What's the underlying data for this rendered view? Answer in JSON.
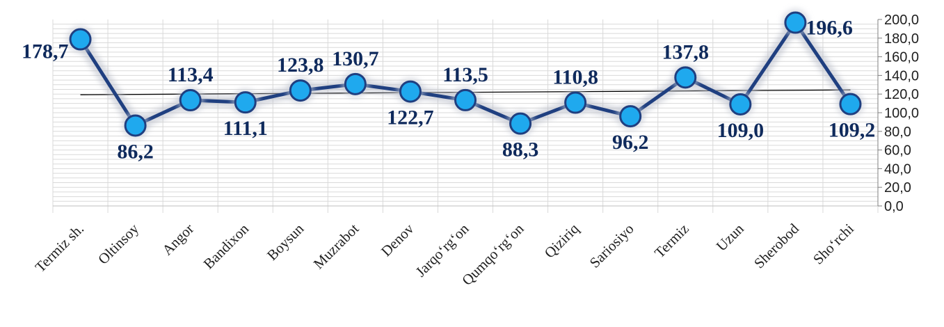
{
  "chart_data": {
    "type": "line",
    "title": "",
    "xlabel": "",
    "ylabel": "",
    "categories": [
      "Termiz sh.",
      "Oltinsoy",
      "Angor",
      "Bandixon",
      "Boysun",
      "Muzrabot",
      "Denov",
      "Jarqo‘rg‘on",
      "Qumqo‘rg‘on",
      "Qiziriq",
      "Sariosiyo",
      "Termiz",
      "Uzun",
      "Sherobod",
      "Sho‘rchi"
    ],
    "series": [
      {
        "values": [
          178.7,
          86.2,
          113.4,
          111.1,
          123.8,
          130.7,
          122.7,
          113.5,
          88.3,
          110.8,
          96.2,
          137.8,
          109.0,
          196.6,
          109.2
        ],
        "labels": [
          "178,7",
          "86,2",
          "113,4",
          "111,1",
          "123,8",
          "130,7",
          "122,7",
          "113,5",
          "88,3",
          "110,8",
          "96,2",
          "137,8",
          "109,0",
          "196,6",
          "109,2"
        ],
        "color": "#1f3f80",
        "marker_color": "#1fa9ee"
      }
    ],
    "trendline": {
      "type": "linear",
      "color": "#000000"
    },
    "ylim": [
      0,
      200
    ],
    "yticks": [
      "0,0",
      "20,0",
      "40,0",
      "60,0",
      "80,0",
      "100,0",
      "120,0",
      "140,0",
      "160,0",
      "180,0",
      "200,0"
    ],
    "y_axis_position": "right",
    "grid": true,
    "legend": "none"
  }
}
